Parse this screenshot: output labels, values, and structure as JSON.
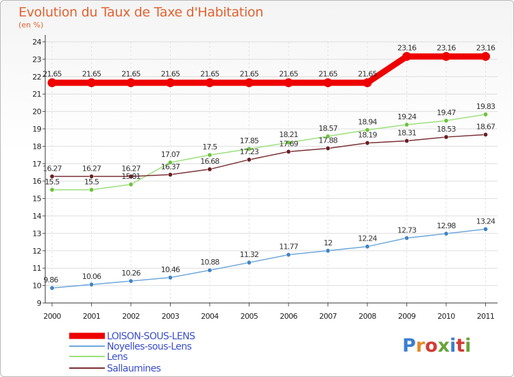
{
  "header": {
    "title": "Evolution du Taux de Taxe d'Habitation",
    "unit": "(en %)"
  },
  "logo": {
    "text": "Proxiti",
    "colors": [
      "#3a7fcf",
      "#e58a2a",
      "#d23b34",
      "#6aa33a",
      "#3a7fcf",
      "#d23b34",
      "#6aa33a"
    ]
  },
  "chart_data": {
    "type": "line",
    "title": "Evolution du Taux de Taxe d'Habitation",
    "ylabel": "(en %)",
    "xlabel": "",
    "x": [
      "2000",
      "2001",
      "2002",
      "2003",
      "2004",
      "2005",
      "2006",
      "2007",
      "2008",
      "2009",
      "2010",
      "2011"
    ],
    "yticks": [
      "9",
      "10",
      "11",
      "12",
      "13",
      "14",
      "15",
      "16",
      "17",
      "18",
      "19",
      "20",
      "21",
      "22",
      "23",
      "24"
    ],
    "ylim": [
      9,
      24
    ],
    "grid": true,
    "legend": "bottom-left",
    "series": [
      {
        "name": "LOISON-SOUS-LENS",
        "color": "#ee0000",
        "bold": true,
        "values": [
          21.65,
          21.65,
          21.65,
          21.65,
          21.65,
          21.65,
          21.65,
          21.65,
          21.65,
          23.16,
          23.16,
          23.16
        ],
        "labels": [
          "21.65",
          "21.65",
          "21.65",
          "21.65",
          "21.65",
          "21.65",
          "21.65",
          "21.65",
          "21.65",
          "23.16",
          "23.16",
          "23.16"
        ]
      },
      {
        "name": "Noyelles-sous-Lens",
        "color": "#6fa8dc",
        "marker": "#3f84c3",
        "values": [
          9.86,
          10.06,
          10.26,
          10.46,
          10.88,
          11.32,
          11.77,
          12,
          12.24,
          12.73,
          12.98,
          13.24
        ],
        "labels": [
          "9.86",
          "10.06",
          "10.26",
          "10.46",
          "10.88",
          "11.32",
          "11.77",
          "12",
          "12.24",
          "12.73",
          "12.98",
          "13.24"
        ]
      },
      {
        "name": "Lens",
        "color": "#9be07a",
        "marker": "#6cc23a",
        "values": [
          15.5,
          15.5,
          15.81,
          17.07,
          17.5,
          17.85,
          18.21,
          18.57,
          18.94,
          19.24,
          19.47,
          19.83
        ],
        "labels": [
          "15.5",
          "15.5",
          "15.81",
          "17.07",
          "17.5",
          "17.85",
          "18.21",
          "18.57",
          "18.94",
          "19.24",
          "19.47",
          "19.83"
        ]
      },
      {
        "name": "Sallaumines",
        "color": "#7a3035",
        "marker": "#6b1e22",
        "values": [
          16.27,
          16.27,
          16.27,
          16.37,
          16.68,
          17.23,
          17.69,
          17.88,
          18.19,
          18.31,
          18.53,
          18.67
        ],
        "labels": [
          "16.27",
          "16.27",
          "16.27",
          "16.37",
          "16.68",
          "17.23",
          "17.69",
          "17.88",
          "18.19",
          "18.31",
          "18.53",
          "18.67"
        ]
      }
    ]
  }
}
